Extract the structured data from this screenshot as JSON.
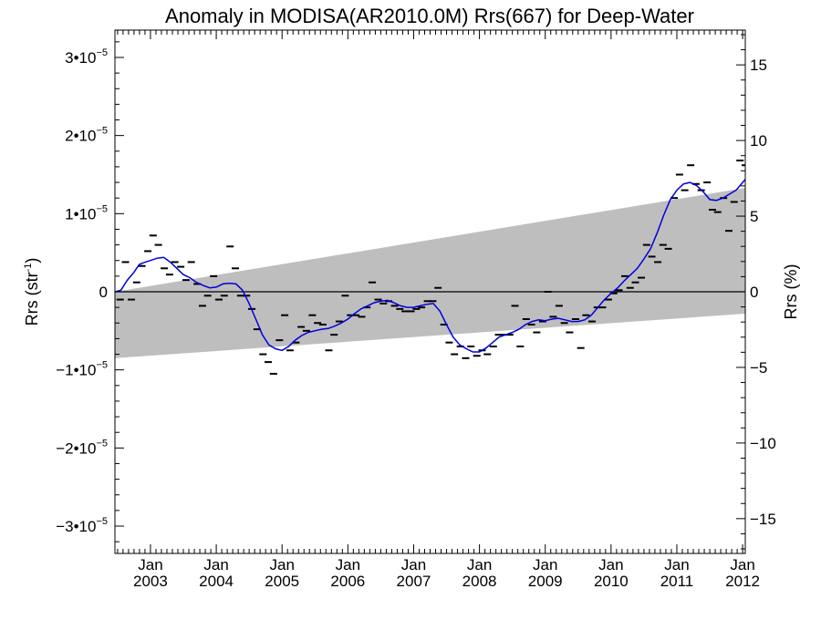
{
  "chart_data": {
    "type": "line",
    "title": "Anomaly in MODISA(AR2010.0M) Rrs(667) for Deep-Water",
    "ylabel_left": {
      "base": "Rrs (str",
      "sup": "-1",
      "close": ")"
    },
    "ylabel_right": "Rrs (%)",
    "xlim": [
      2002.46,
      2012.04
    ],
    "ylim_left": [
      -3.35e-05,
      3.35e-05
    ],
    "ylim_right": [
      -17.3,
      17.3
    ],
    "left_ticks": [
      {
        "v": 3e-05,
        "mant": "3•10",
        "exp": "−5"
      },
      {
        "v": 2e-05,
        "mant": "2•10",
        "exp": "−5"
      },
      {
        "v": 1e-05,
        "mant": "1•10",
        "exp": "−5"
      },
      {
        "v": 0,
        "mant": "0",
        "exp": ""
      },
      {
        "v": -1e-05,
        "mant": "−1•10",
        "exp": "−5"
      },
      {
        "v": -2e-05,
        "mant": "−2•10",
        "exp": "−5"
      },
      {
        "v": -3e-05,
        "mant": "−3•10",
        "exp": "−5"
      }
    ],
    "right_ticks": [
      {
        "v": 15,
        "label": "15"
      },
      {
        "v": 10,
        "label": "10"
      },
      {
        "v": 5,
        "label": "5"
      },
      {
        "v": 0,
        "label": "0"
      },
      {
        "v": -5,
        "label": "−5"
      },
      {
        "v": -10,
        "label": "−10"
      },
      {
        "v": -15,
        "label": "−15"
      }
    ],
    "x_ticks": [
      {
        "t": 2003.0,
        "month": "Jan",
        "year": "2003"
      },
      {
        "t": 2004.0,
        "month": "Jan",
        "year": "2004"
      },
      {
        "t": 2005.0,
        "month": "Jan",
        "year": "2005"
      },
      {
        "t": 2006.0,
        "month": "Jan",
        "year": "2006"
      },
      {
        "t": 2007.0,
        "month": "Jan",
        "year": "2007"
      },
      {
        "t": 2008.0,
        "month": "Jan",
        "year": "2008"
      },
      {
        "t": 2009.0,
        "month": "Jan",
        "year": "2009"
      },
      {
        "t": 2010.0,
        "month": "Jan",
        "year": "2010"
      },
      {
        "t": 2011.0,
        "month": "Jan",
        "year": "2011"
      },
      {
        "t": 2012.0,
        "month": "Jan",
        "year": "2012"
      }
    ],
    "uncertainty_band": {
      "upper": [
        [
          2002.46,
          0.0
        ],
        [
          2012.04,
          1.33e-05
        ]
      ],
      "lower": [
        [
          2002.46,
          -8.5e-06
        ],
        [
          2012.04,
          -2.8e-06
        ]
      ],
      "color": "#bebebe"
    },
    "zero_line": true,
    "colors": {
      "smooth": "#0000dd",
      "markers": "#000000"
    },
    "monthly_anomalies": [
      [
        2002.54,
        -1e-06
      ],
      [
        2002.62,
        3.8e-06
      ],
      [
        2002.71,
        -1e-06
      ],
      [
        2002.79,
        1.2e-06
      ],
      [
        2002.87,
        3.3e-06
      ],
      [
        2002.96,
        5.2e-06
      ],
      [
        2003.04,
        7.2e-06
      ],
      [
        2003.12,
        6e-06
      ],
      [
        2003.21,
        3e-06
      ],
      [
        2003.29,
        2.2e-06
      ],
      [
        2003.37,
        3.8e-06
      ],
      [
        2003.46,
        3.2e-06
      ],
      [
        2003.54,
        1.5e-06
      ],
      [
        2003.62,
        3.8e-06
      ],
      [
        2003.71,
        1e-06
      ],
      [
        2003.79,
        -1.8e-06
      ],
      [
        2003.87,
        -5e-07
      ],
      [
        2003.96,
        2e-06
      ],
      [
        2004.04,
        -1e-06
      ],
      [
        2004.12,
        -5e-07
      ],
      [
        2004.21,
        5.8e-06
      ],
      [
        2004.29,
        3e-06
      ],
      [
        2004.37,
        -5e-07
      ],
      [
        2004.46,
        -5e-07
      ],
      [
        2004.54,
        -2.2e-06
      ],
      [
        2004.62,
        -4.8e-06
      ],
      [
        2004.71,
        -8e-06
      ],
      [
        2004.79,
        -9e-06
      ],
      [
        2004.87,
        -1.05e-05
      ],
      [
        2004.96,
        -6.2e-06
      ],
      [
        2005.04,
        -3e-06
      ],
      [
        2005.12,
        -7.5e-06
      ],
      [
        2005.21,
        -6.5e-06
      ],
      [
        2005.29,
        -4.5e-06
      ],
      [
        2005.37,
        -5e-06
      ],
      [
        2005.46,
        -3e-06
      ],
      [
        2005.54,
        -4e-06
      ],
      [
        2005.62,
        -4.2e-06
      ],
      [
        2005.71,
        -7.5e-06
      ],
      [
        2005.79,
        -5.5e-06
      ],
      [
        2005.87,
        -3.8e-06
      ],
      [
        2005.96,
        -5e-07
      ],
      [
        2006.04,
        -3e-06
      ],
      [
        2006.12,
        -3e-06
      ],
      [
        2006.21,
        -3.2e-06
      ],
      [
        2006.29,
        -2e-06
      ],
      [
        2006.37,
        1.2e-06
      ],
      [
        2006.46,
        -1e-06
      ],
      [
        2006.54,
        -1.5e-06
      ],
      [
        2006.62,
        -1.2e-06
      ],
      [
        2006.71,
        -1.8e-06
      ],
      [
        2006.79,
        -2.2e-06
      ],
      [
        2006.87,
        -2.5e-06
      ],
      [
        2006.96,
        -2.5e-06
      ],
      [
        2007.04,
        -2.2e-06
      ],
      [
        2007.12,
        -2e-06
      ],
      [
        2007.21,
        -1.2e-06
      ],
      [
        2007.29,
        -1.2e-06
      ],
      [
        2007.37,
        5e-07
      ],
      [
        2007.46,
        -4.2e-06
      ],
      [
        2007.54,
        -6.5e-06
      ],
      [
        2007.62,
        -8e-06
      ],
      [
        2007.71,
        -7e-06
      ],
      [
        2007.79,
        -8.5e-06
      ],
      [
        2007.87,
        -7e-06
      ],
      [
        2007.96,
        -8.2e-06
      ],
      [
        2008.04,
        -7.5e-06
      ],
      [
        2008.12,
        -8e-06
      ],
      [
        2008.21,
        -7e-06
      ],
      [
        2008.29,
        -5.5e-06
      ],
      [
        2008.37,
        -5.5e-06
      ],
      [
        2008.46,
        -5.5e-06
      ],
      [
        2008.54,
        -1.8e-06
      ],
      [
        2008.62,
        -7e-06
      ],
      [
        2008.71,
        -3.5e-06
      ],
      [
        2008.79,
        -4.2e-06
      ],
      [
        2008.87,
        -5.2e-06
      ],
      [
        2008.96,
        -3.8e-06
      ],
      [
        2009.04,
        0.0
      ],
      [
        2009.12,
        -3.2e-06
      ],
      [
        2009.21,
        -1.8e-06
      ],
      [
        2009.29,
        -4e-06
      ],
      [
        2009.37,
        -5.2e-06
      ],
      [
        2009.46,
        -3.5e-06
      ],
      [
        2009.54,
        -7.2e-06
      ],
      [
        2009.62,
        -3e-06
      ],
      [
        2009.71,
        -3.8e-06
      ],
      [
        2009.79,
        -2e-06
      ],
      [
        2009.87,
        -2e-06
      ],
      [
        2009.96,
        -1e-06
      ],
      [
        2010.04,
        -2e-07
      ],
      [
        2010.12,
        2e-07
      ],
      [
        2010.21,
        2e-06
      ],
      [
        2010.29,
        5e-07
      ],
      [
        2010.37,
        1.2e-06
      ],
      [
        2010.46,
        1.8e-06
      ],
      [
        2010.54,
        6e-06
      ],
      [
        2010.62,
        4.5e-06
      ],
      [
        2010.71,
        3.8e-06
      ],
      [
        2010.79,
        6e-06
      ],
      [
        2010.87,
        5.5e-06
      ],
      [
        2010.96,
        1.2e-05
      ],
      [
        2011.04,
        1.5e-05
      ],
      [
        2011.12,
        1.3e-05
      ],
      [
        2011.21,
        1.62e-05
      ],
      [
        2011.29,
        1.38e-05
      ],
      [
        2011.37,
        1.3e-05
      ],
      [
        2011.46,
        1.4e-05
      ],
      [
        2011.54,
        1.05e-05
      ],
      [
        2011.62,
        1.02e-05
      ],
      [
        2011.71,
        1.2e-05
      ],
      [
        2011.79,
        7.8e-06
      ],
      [
        2011.87,
        1.15e-05
      ],
      [
        2011.96,
        1.68e-05
      ],
      [
        2012.04,
        1.62e-05
      ],
      [
        2012.12,
        1.58e-05
      ],
      [
        2012.21,
        1.4e-05
      ]
    ],
    "smoothed_series": [
      [
        2002.46,
        0.0
      ],
      [
        2002.55,
        2e-07
      ],
      [
        2002.65,
        1.5e-06
      ],
      [
        2002.75,
        2.5e-06
      ],
      [
        2002.83,
        3.5e-06
      ],
      [
        2002.92,
        3.8e-06
      ],
      [
        2003.0,
        4e-06
      ],
      [
        2003.1,
        4.3e-06
      ],
      [
        2003.2,
        4.4e-06
      ],
      [
        2003.3,
        3.8e-06
      ],
      [
        2003.4,
        3e-06
      ],
      [
        2003.5,
        2.2e-06
      ],
      [
        2003.6,
        1.8e-06
      ],
      [
        2003.7,
        1.2e-06
      ],
      [
        2003.8,
        8e-07
      ],
      [
        2003.9,
        5e-07
      ],
      [
        2004.0,
        6e-07
      ],
      [
        2004.1,
        1e-06
      ],
      [
        2004.2,
        1.1e-06
      ],
      [
        2004.3,
        1e-06
      ],
      [
        2004.4,
        2e-07
      ],
      [
        2004.5,
        -1.5e-06
      ],
      [
        2004.6,
        -3.5e-06
      ],
      [
        2004.7,
        -5.5e-06
      ],
      [
        2004.8,
        -6.8e-06
      ],
      [
        2004.9,
        -7.3e-06
      ],
      [
        2005.0,
        -7.5e-06
      ],
      [
        2005.1,
        -7e-06
      ],
      [
        2005.2,
        -6.2e-06
      ],
      [
        2005.3,
        -5.6e-06
      ],
      [
        2005.4,
        -5.2e-06
      ],
      [
        2005.5,
        -5e-06
      ],
      [
        2005.6,
        -4.8e-06
      ],
      [
        2005.7,
        -4.7e-06
      ],
      [
        2005.8,
        -4.4e-06
      ],
      [
        2005.9,
        -4e-06
      ],
      [
        2006.0,
        -3.5e-06
      ],
      [
        2006.1,
        -2.8e-06
      ],
      [
        2006.2,
        -2.2e-06
      ],
      [
        2006.3,
        -1.8e-06
      ],
      [
        2006.4,
        -1.4e-06
      ],
      [
        2006.5,
        -1.2e-06
      ],
      [
        2006.6,
        -1.1e-06
      ],
      [
        2006.7,
        -1.4e-06
      ],
      [
        2006.8,
        -1.8e-06
      ],
      [
        2006.9,
        -2e-06
      ],
      [
        2007.0,
        -2e-06
      ],
      [
        2007.1,
        -1.8e-06
      ],
      [
        2007.2,
        -1.6e-06
      ],
      [
        2007.3,
        -1.5e-06
      ],
      [
        2007.4,
        -2.5e-06
      ],
      [
        2007.5,
        -4.2e-06
      ],
      [
        2007.6,
        -5.8e-06
      ],
      [
        2007.7,
        -6.8e-06
      ],
      [
        2007.8,
        -7.3e-06
      ],
      [
        2007.9,
        -7.7e-06
      ],
      [
        2008.0,
        -7.7e-06
      ],
      [
        2008.1,
        -7.2e-06
      ],
      [
        2008.2,
        -6.5e-06
      ],
      [
        2008.3,
        -5.8e-06
      ],
      [
        2008.4,
        -5.5e-06
      ],
      [
        2008.5,
        -5.2e-06
      ],
      [
        2008.6,
        -4.8e-06
      ],
      [
        2008.7,
        -4.2e-06
      ],
      [
        2008.8,
        -3.8e-06
      ],
      [
        2008.9,
        -3.6e-06
      ],
      [
        2009.0,
        -3.7e-06
      ],
      [
        2009.1,
        -3.5e-06
      ],
      [
        2009.2,
        -3.4e-06
      ],
      [
        2009.3,
        -3.6e-06
      ],
      [
        2009.4,
        -3.8e-06
      ],
      [
        2009.5,
        -3.8e-06
      ],
      [
        2009.6,
        -3.6e-06
      ],
      [
        2009.7,
        -3e-06
      ],
      [
        2009.8,
        -2e-06
      ],
      [
        2009.9,
        -1e-06
      ],
      [
        2010.0,
        -2e-07
      ],
      [
        2010.1,
        5e-07
      ],
      [
        2010.2,
        1.4e-06
      ],
      [
        2010.3,
        2.2e-06
      ],
      [
        2010.4,
        3e-06
      ],
      [
        2010.5,
        4.2e-06
      ],
      [
        2010.6,
        5.5e-06
      ],
      [
        2010.7,
        7.5e-06
      ],
      [
        2010.8,
        9.8e-06
      ],
      [
        2010.9,
        1.18e-05
      ],
      [
        2011.0,
        1.3e-05
      ],
      [
        2011.1,
        1.38e-05
      ],
      [
        2011.2,
        1.4e-05
      ],
      [
        2011.3,
        1.36e-05
      ],
      [
        2011.4,
        1.28e-05
      ],
      [
        2011.5,
        1.18e-05
      ],
      [
        2011.6,
        1.17e-05
      ],
      [
        2011.7,
        1.2e-05
      ],
      [
        2011.8,
        1.25e-05
      ],
      [
        2011.9,
        1.3e-05
      ],
      [
        2012.0,
        1.4e-05
      ],
      [
        2012.08,
        1.48e-05
      ],
      [
        2012.15,
        1.5e-05
      ],
      [
        2012.22,
        1.45e-05
      ]
    ]
  }
}
